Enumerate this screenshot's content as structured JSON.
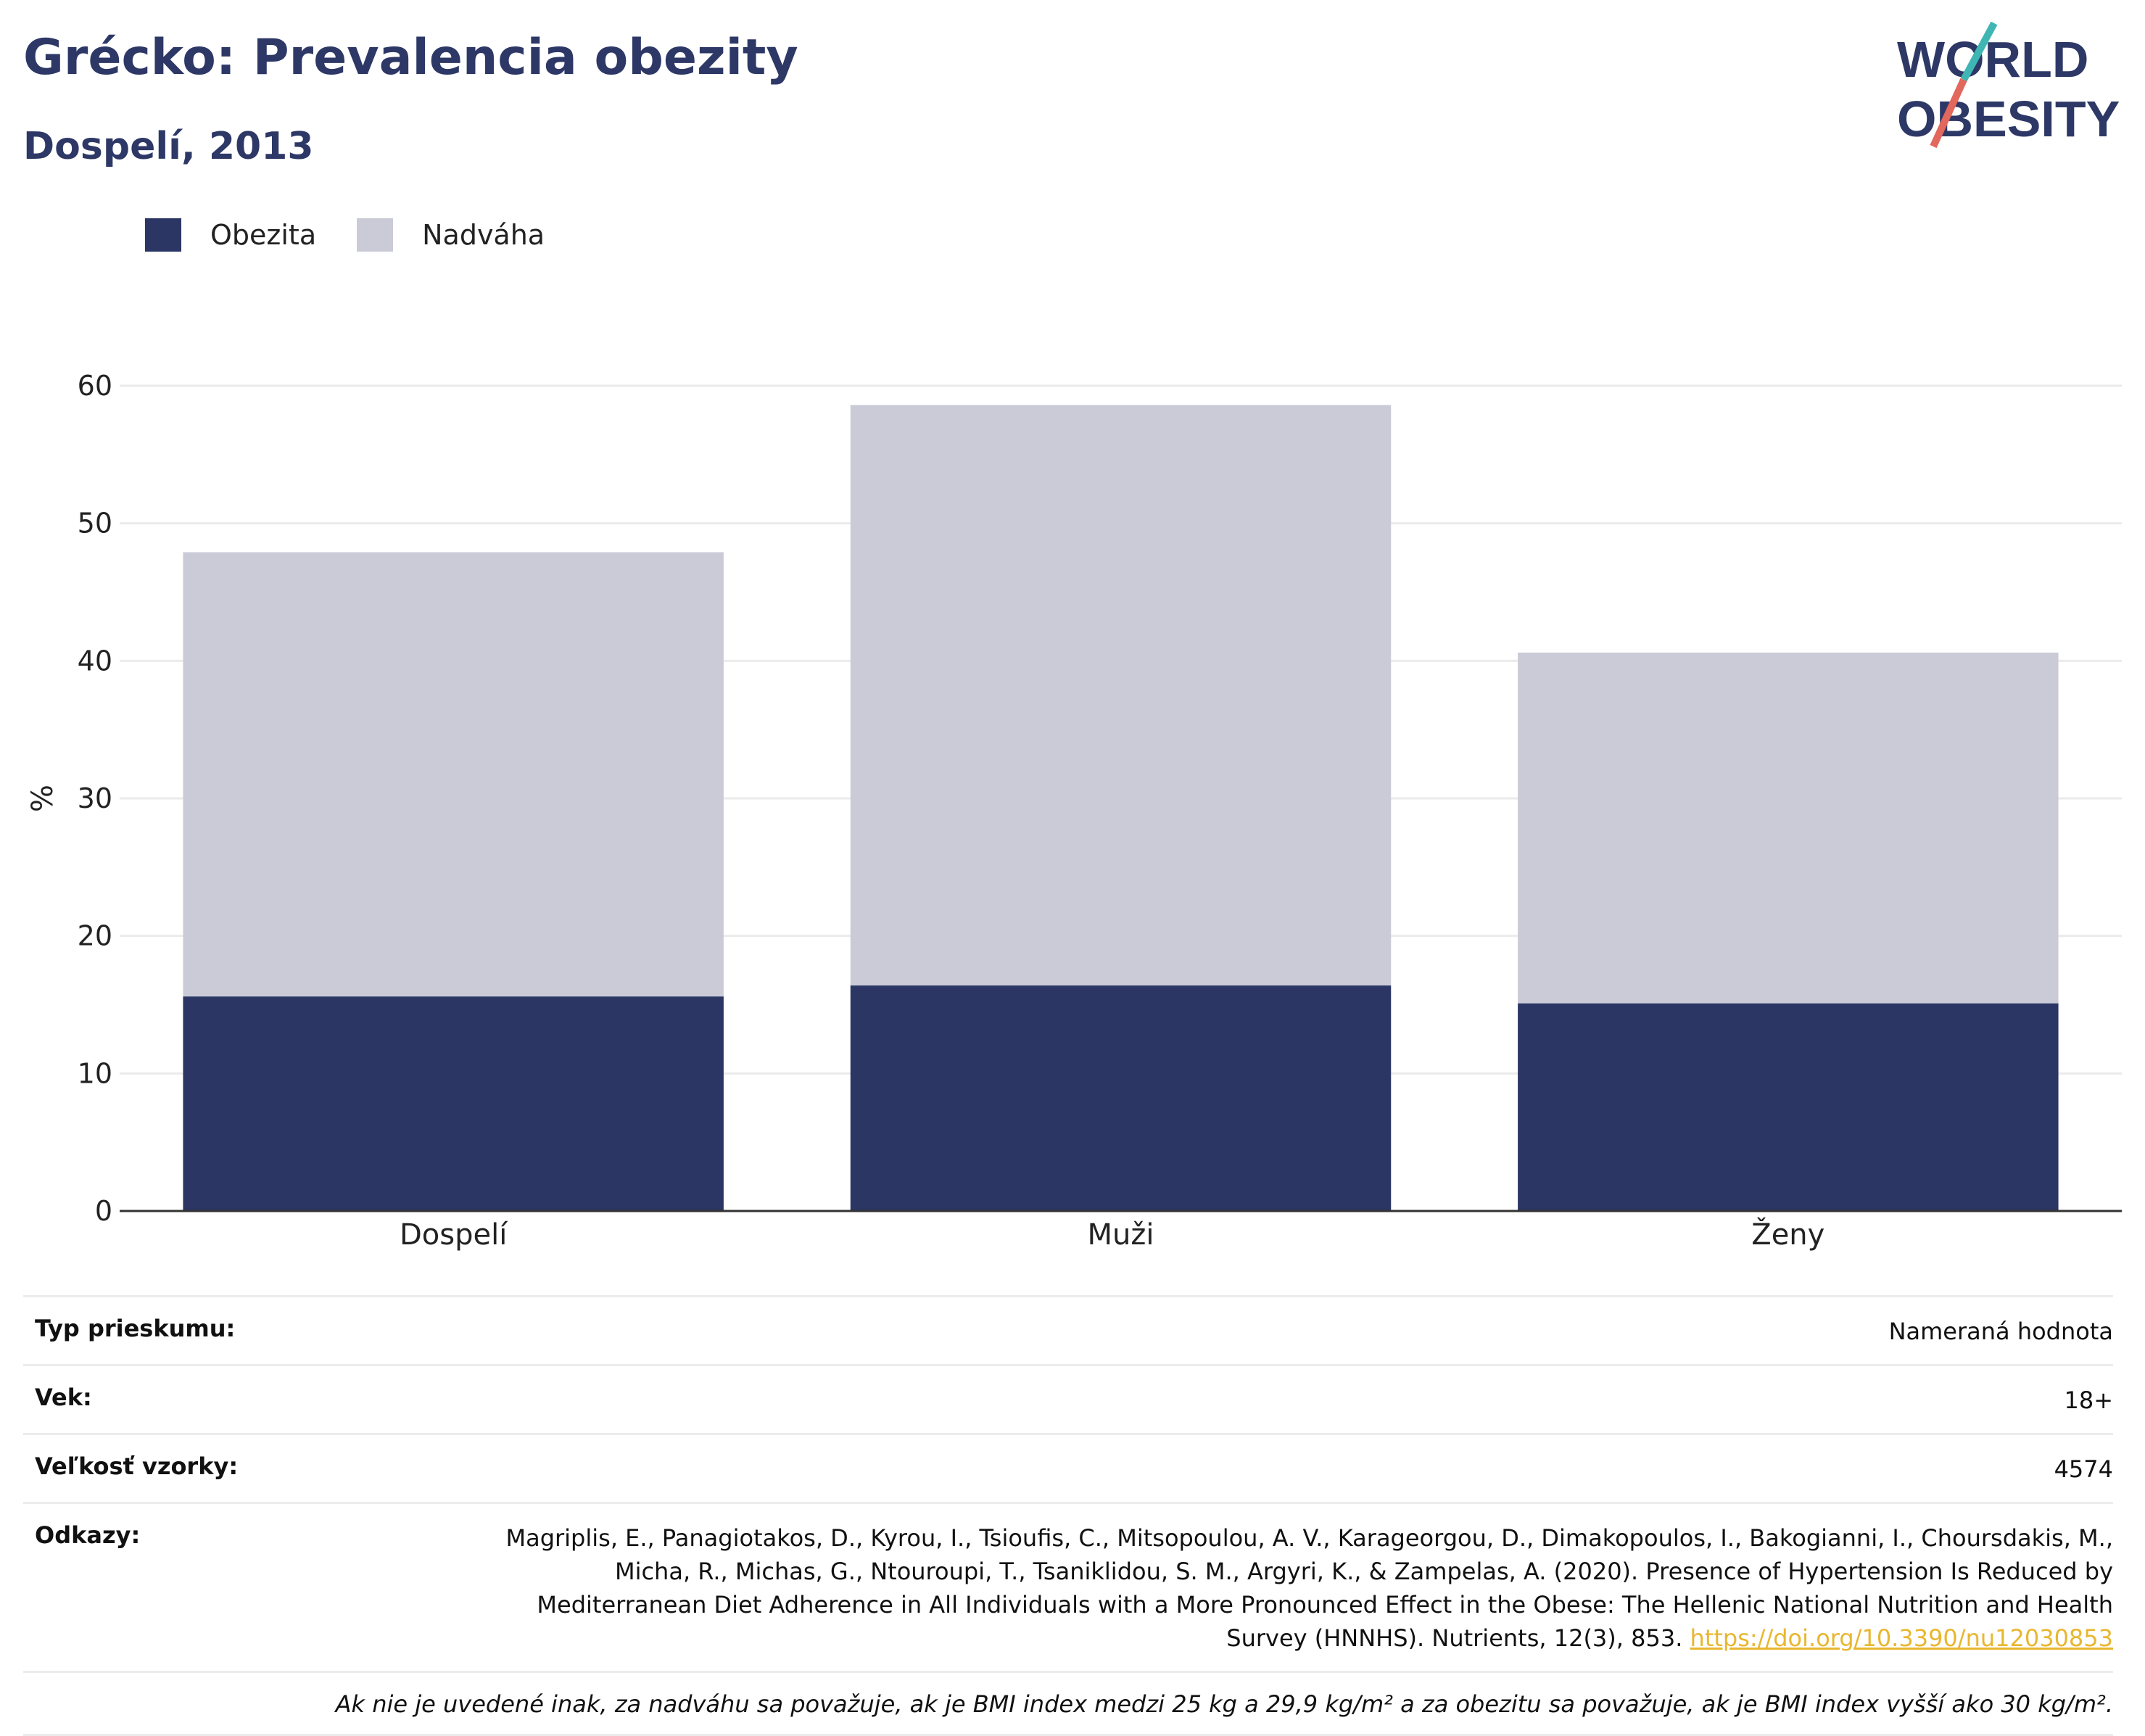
{
  "header": {
    "title": "Grécko: Prevalencia obezity",
    "subtitle": "Dospelí, 2013"
  },
  "logo": {
    "line1": "WORLD",
    "line2": "OBESITY"
  },
  "colors": {
    "obesity": "#2b3665",
    "overweight": "#cacbd7",
    "title": "#2d3866",
    "accent_teal": "#3fb6b4",
    "accent_coral": "#e2675c",
    "link": "#e8b730"
  },
  "chart_data": {
    "type": "bar",
    "stacked": true,
    "categories": [
      "Dospelí",
      "Muži",
      "Ženy"
    ],
    "series": [
      {
        "name": "Obezita",
        "values": [
          15.6,
          16.4,
          15.1
        ]
      },
      {
        "name": "Nadváha",
        "values": [
          32.3,
          42.2,
          25.5
        ]
      }
    ],
    "ylabel": "%",
    "ylim": [
      0,
      60
    ],
    "yticks": [
      0,
      10,
      20,
      30,
      40,
      50,
      60
    ],
    "grid": true,
    "legend": "top-left"
  },
  "meta": {
    "survey_type_label": "Typ prieskumu:",
    "survey_type_value": "Nameraná hodnota",
    "age_label": "Vek:",
    "age_value": "18+",
    "sample_label": "Veľkosť vzorky:",
    "sample_value": "4574",
    "refs_label": "Odkazy:",
    "refs_line1": "Magriplis, E., Panagiotakos, D., Kyrou, I., Tsioufis, C., Mitsopoulou, A. V., Karageorgou, D., Dimakopoulos, I., Bakogianni, I., Choursdakis, M.,",
    "refs_line2": "Micha, R., Michas, G., Ntouroupi, T., Tsaniklidou, S. M., Argyri, K., & Zampelas, A. (2020). Presence of Hypertension Is Reduced by",
    "refs_line3": "Mediterranean Diet Adherence in All Individuals with a More Pronounced Effect in the Obese: The Hellenic National Nutrition and Health",
    "refs_line4": "Survey (HNNHS). Nutrients, 12(3), 853. ",
    "refs_link": "https://doi.org/10.3390/nu12030853",
    "note": "Ak nie je uvedené inak, za nadváhu sa považuje, ak je BMI index medzi 25 kg a 29,9 kg/m² a za obezitu sa považuje, ak je BMI index vyšší ako 30 kg/m²."
  }
}
